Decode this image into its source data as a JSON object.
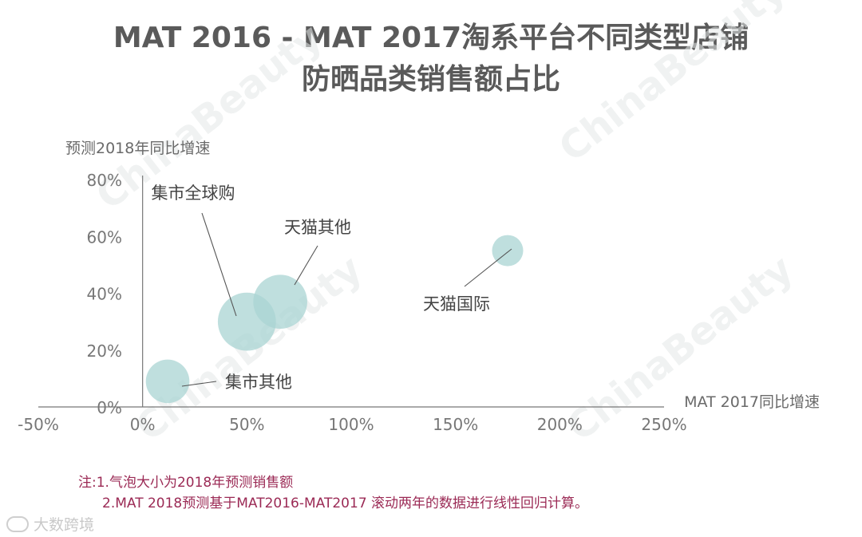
{
  "title_line1": "MAT 2016 - MAT 2017淘系平台不同类型店铺",
  "title_line2": "防晒品类销售额占比",
  "notes": {
    "line1": "注:1.气泡大小为2018年预测销售额",
    "line2": "2.MAT 2018预测基于MAT2016-MAT2017 滚动两年的数据进行线性回归计算。"
  },
  "brand": {
    "text": "大数跨境",
    "icon": "loop-logo-icon"
  },
  "watermark": "ChinaBeauty",
  "chart_data": {
    "type": "scatter",
    "xlabel": "MAT 2017同比增速",
    "ylabel": "预测2018年同比增速",
    "xlim": [
      -50,
      250
    ],
    "ylim": [
      0,
      80
    ],
    "x_ticks": [
      -50,
      0,
      50,
      100,
      150,
      200,
      250
    ],
    "x_tick_labels": [
      "-50%",
      "0%",
      "50%",
      "100%",
      "150%",
      "200%",
      "250%"
    ],
    "y_ticks": [
      0,
      20,
      40,
      60,
      80
    ],
    "y_tick_labels": [
      "0%",
      "20%",
      "40%",
      "60%",
      "80%"
    ],
    "grid": false,
    "bubble_color": "#a9d4d3",
    "points": [
      {
        "label": "集市全球购",
        "x": 50,
        "y": 30,
        "size": 2.8
      },
      {
        "label": "天猫其他",
        "x": 66,
        "y": 37,
        "size": 2.6
      },
      {
        "label": "天猫国际",
        "x": 175,
        "y": 55,
        "size": 1.5
      },
      {
        "label": "集市其他",
        "x": 12,
        "y": 9,
        "size": 2.1
      }
    ]
  }
}
